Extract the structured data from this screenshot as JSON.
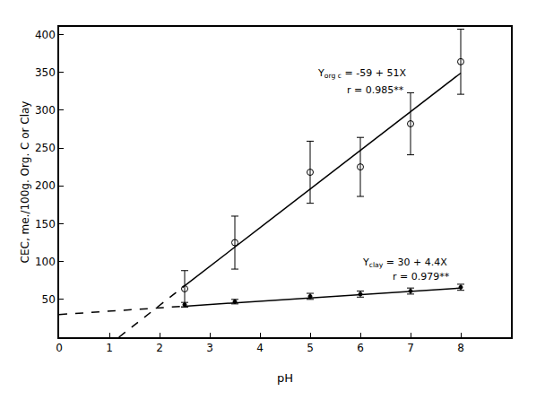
{
  "chart_data": {
    "type": "scatter",
    "xlabel": "pH",
    "ylabel": "CEC, me./100g. Org. C or Clay",
    "xlim": [
      0,
      9
    ],
    "ylim": [
      0,
      410
    ],
    "xticks": [
      0,
      1,
      2,
      3,
      4,
      5,
      6,
      7,
      8
    ],
    "yticks": [
      50,
      100,
      150,
      200,
      250,
      300,
      350,
      400
    ],
    "grid": false,
    "series": [
      {
        "type": "scatter",
        "marker": "open circle",
        "color": "#000000",
        "x": [
          2.5,
          3.5,
          5,
          6,
          7,
          8
        ],
        "values": [
          64,
          125,
          218,
          225,
          282,
          364
        ],
        "error": [
          24,
          35,
          41,
          39,
          41,
          43
        ]
      },
      {
        "type": "scatter",
        "marker": "dot",
        "color": "#000000",
        "x": [
          2.5,
          3.5,
          5,
          6,
          7,
          8
        ],
        "values": [
          43,
          47,
          54,
          57,
          61,
          66
        ],
        "error": [
          3,
          3,
          4,
          4,
          4,
          4
        ]
      },
      {
        "type": "line",
        "line_style": "solid",
        "color": "#000000",
        "x": [
          2.5,
          8
        ],
        "values": [
          68,
          349
        ]
      },
      {
        "type": "line",
        "line_style": "dashed",
        "color": "#000000",
        "x": [
          1.19,
          2.5
        ],
        "values": [
          0,
          68
        ]
      },
      {
        "type": "line",
        "line_style": "solid",
        "color": "#000000",
        "x": [
          2.5,
          8
        ],
        "values": [
          41,
          65
        ]
      },
      {
        "type": "line",
        "line_style": "dashed",
        "color": "#000000",
        "x": [
          0,
          2.5
        ],
        "values": [
          30,
          41
        ]
      }
    ],
    "annotations": [
      {
        "text": "Y",
        "subscript": "org c",
        "rest": " = -59 + 51X"
      },
      {
        "text": "r = 0.985**"
      },
      {
        "text": "Y",
        "subscript": "clay",
        "rest": " = 30 + 4.4X"
      },
      {
        "text": "r = 0.979**"
      }
    ]
  }
}
